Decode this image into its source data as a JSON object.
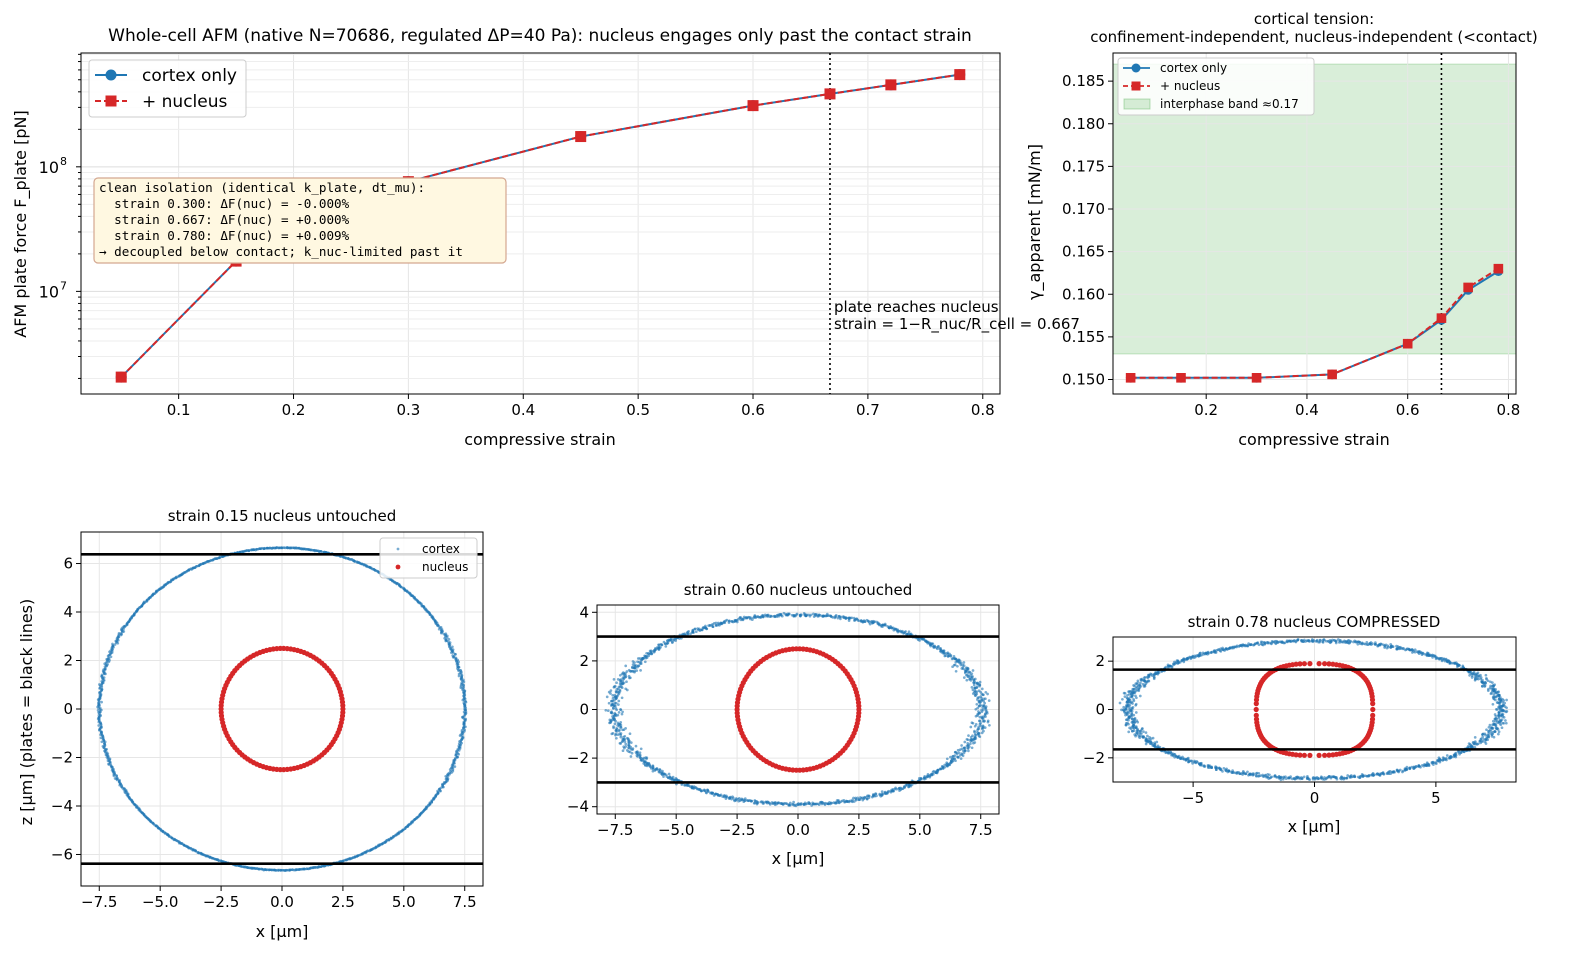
{
  "colors": {
    "cortex": "#1f77b4",
    "nucleus": "#d62728",
    "band": "#2ca02c",
    "annot_bg": "#fff8e1",
    "annot_border": "#d4a790"
  },
  "chart_data": [
    {
      "id": "force",
      "type": "line",
      "title": "Whole-cell AFM (native N=70686, regulated ΔP=40 Pa): nucleus engages only past the contact strain",
      "xlabel": "compressive strain",
      "ylabel": "AFM plate force  F_plate [pN]",
      "yscale": "log",
      "xlim": [
        0.015,
        0.815
      ],
      "ylim": [
        1500000.0,
        820000000.0
      ],
      "xticks": [
        0.1,
        0.2,
        0.3,
        0.4,
        0.5,
        0.6,
        0.7,
        0.8
      ],
      "xtick_labels": [
        "0.1",
        "0.2",
        "0.3",
        "0.4",
        "0.5",
        "0.6",
        "0.7",
        "0.8"
      ],
      "ytick_major": [
        10000000,
        100000000
      ],
      "ytick_base": "10",
      "ytick_exponents": [
        "7",
        "8"
      ],
      "grid": true,
      "legend_position": "upper-left",
      "x": [
        0.05,
        0.15,
        0.3,
        0.45,
        0.6,
        0.667,
        0.72,
        0.78
      ],
      "series": [
        {
          "name": "cortex only",
          "style": "solid-circle",
          "values": [
            2050000.0,
            17500000.0,
            76000000.0,
            175000000.0,
            310000000.0,
            385000000.0,
            455000000.0,
            550000000.0
          ]
        },
        {
          "name": "+ nucleus",
          "style": "dashed-square",
          "values": [
            2050000.0,
            17500000.0,
            76000000.0,
            175000000.0,
            310000000.0,
            385000000.0,
            455000000.0,
            550000000.0
          ]
        }
      ],
      "vline": {
        "x": 0.667,
        "label_line1": "plate reaches nucleus",
        "label_line2": "strain = 1−R_nuc/R_cell = 0.667"
      },
      "annotation": [
        "clean isolation (identical k_plate, dt_mu):",
        "  strain 0.300: ΔF(nuc) = -0.000%",
        "  strain 0.667: ΔF(nuc) = +0.000%",
        "  strain 0.780: ΔF(nuc) = +0.009%",
        "→ decoupled below contact; k_nuc-limited past it"
      ]
    },
    {
      "id": "tension",
      "type": "line",
      "title_line1": "cortical tension:",
      "title_line2": "confinement-independent, nucleus-independent (<contact)",
      "xlabel": "compressive strain",
      "ylabel": "γ_apparent [mN/m]",
      "xlim": [
        0.015,
        0.815
      ],
      "ylim": [
        0.1483,
        0.1883
      ],
      "xticks": [
        0.2,
        0.4,
        0.6,
        0.8
      ],
      "xtick_labels": [
        "0.2",
        "0.4",
        "0.6",
        "0.8"
      ],
      "yticks": [
        0.15,
        0.155,
        0.16,
        0.165,
        0.17,
        0.175,
        0.18,
        0.185
      ],
      "ytick_labels": [
        "0.150",
        "0.155",
        "0.160",
        "0.165",
        "0.170",
        "0.175",
        "0.180",
        "0.185"
      ],
      "grid": true,
      "legend_position": "upper-left",
      "x": [
        0.05,
        0.15,
        0.3,
        0.45,
        0.6,
        0.667,
        0.72,
        0.78
      ],
      "series": [
        {
          "name": "cortex only",
          "style": "solid-circle",
          "values": [
            0.1502,
            0.1502,
            0.1502,
            0.1506,
            0.1542,
            0.157,
            0.1605,
            0.1627
          ]
        },
        {
          "name": "+ nucleus",
          "style": "dashed-square",
          "values": [
            0.1502,
            0.1502,
            0.1502,
            0.1506,
            0.1542,
            0.1572,
            0.1608,
            0.163
          ]
        }
      ],
      "band": {
        "name": "interphase band ≈0.17",
        "y0": 0.153,
        "y1": 0.187
      },
      "vline": {
        "x": 0.667
      }
    },
    {
      "id": "shape015",
      "type": "scatter",
      "title": "strain 0.15   nucleus untouched",
      "title_color": "#1f77b4",
      "xlabel": "x [μm]",
      "ylabel": "z [μm]  (plates = black lines)",
      "xlim": [
        -8.25,
        8.25
      ],
      "ylim": [
        -7.3,
        7.3
      ],
      "xticks": [
        -7.5,
        -5,
        -2.5,
        0,
        2.5,
        5,
        7.5
      ],
      "xtick_labels": [
        "−7.5",
        "−5.0",
        "−2.5",
        "0.0",
        "2.5",
        "5.0",
        "7.5"
      ],
      "yticks": [
        -6,
        -4,
        -2,
        0,
        2,
        4,
        6
      ],
      "ytick_labels": [
        "−6",
        "−4",
        "−2",
        "0",
        "2",
        "4",
        "6"
      ],
      "legend_position": "upper-right",
      "legend": [
        "cortex",
        "nucleus"
      ],
      "cortex": {
        "rx": 7.5,
        "rz": 6.65,
        "flat_half": 3.9,
        "plate": 6.38,
        "noise": 0.04
      },
      "nucleus": {
        "rx": 2.5,
        "rz": 2.5,
        "flat_half": 0
      },
      "plates": [
        6.38,
        -6.38
      ]
    },
    {
      "id": "shape060",
      "type": "scatter",
      "title": "strain 0.60   nucleus untouched",
      "title_color": "#1f77b4",
      "xlabel": "x [μm]",
      "ylabel": "",
      "xlim": [
        -8.25,
        8.25
      ],
      "ylim": [
        -4.3,
        4.3
      ],
      "xticks": [
        -7.5,
        -5,
        -2.5,
        0,
        2.5,
        5,
        7.5
      ],
      "xtick_labels": [
        "−7.5",
        "−5.0",
        "−2.5",
        "0.0",
        "2.5",
        "5.0",
        "7.5"
      ],
      "yticks": [
        -4,
        -2,
        0,
        2,
        4
      ],
      "ytick_labels": [
        "−4",
        "−2",
        "0",
        "2",
        "4"
      ],
      "cortex": {
        "rx": 7.55,
        "rz": 3.9,
        "flat_half": 7.0,
        "plate": 3.0,
        "noise": 0.15
      },
      "nucleus": {
        "rx": 2.5,
        "rz": 2.5,
        "flat_half": 0
      },
      "plates": [
        3.0,
        -3.0
      ]
    },
    {
      "id": "shape078",
      "type": "scatter",
      "title": "strain 0.78   nucleus COMPRESSED",
      "title_color": "#d62728",
      "xlabel": "x [μm]",
      "ylabel": "",
      "xlim": [
        -8.3,
        8.3
      ],
      "ylim": [
        -3.0,
        3.0
      ],
      "xticks": [
        -5,
        0,
        5
      ],
      "xtick_labels": [
        "−5",
        "0",
        "5"
      ],
      "yticks": [
        -2,
        0,
        2
      ],
      "ytick_labels": [
        "−2",
        "0",
        "2"
      ],
      "cortex": {
        "rx": 7.7,
        "rz": 2.85,
        "flat_half": 7.3,
        "plate": 1.65,
        "noise": 0.15
      },
      "nucleus": {
        "rx": 2.4,
        "rz": 1.9,
        "flat_half": 1.7,
        "plate": 1.65
      },
      "plates": [
        1.65,
        -1.65
      ]
    }
  ]
}
